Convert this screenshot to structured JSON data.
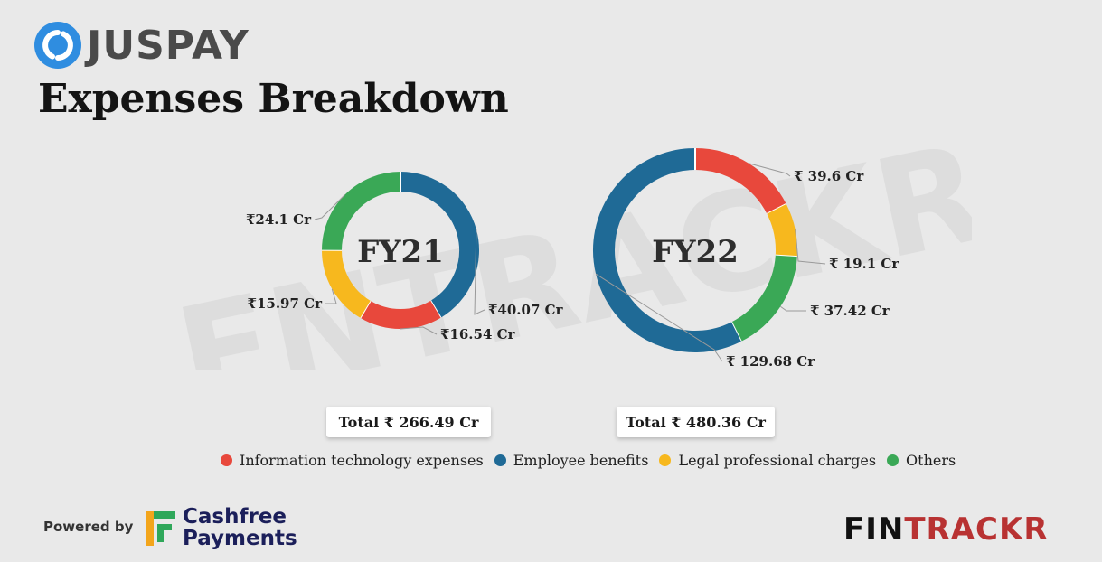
{
  "brand": {
    "name": "JUSPAY",
    "icon": "juspay-logo-icon",
    "icon_color": "#2f8de0"
  },
  "title": "Expenses Breakdown",
  "watermark": "ENTRACKR",
  "colors": {
    "it": "#e8483c",
    "employee": "#1f6a96",
    "legal": "#f7b81e",
    "others": "#3aa856"
  },
  "legend": [
    {
      "label": "Information technology expenses",
      "color": "#e8483c"
    },
    {
      "label": "Employee benefits",
      "color": "#1f6a96"
    },
    {
      "label": "Legal professional charges",
      "color": "#f7b81e"
    },
    {
      "label": "Others",
      "color": "#3aa856"
    }
  ],
  "chart_data": [
    {
      "type": "pie",
      "center_label": "FY21",
      "total_label": "Total ₹ 266.49 Cr",
      "slices": [
        {
          "category": "Employee benefits",
          "value": 40.07,
          "label": "₹40.07 Cr",
          "color": "#1f6a96"
        },
        {
          "category": "Information technology expenses",
          "value": 16.54,
          "label": "₹16.54 Cr",
          "color": "#e8483c"
        },
        {
          "category": "Legal professional charges",
          "value": 15.97,
          "label": "₹15.97 Cr",
          "color": "#f7b81e"
        },
        {
          "category": "Others",
          "value": 24.1,
          "label": "₹24.1 Cr",
          "color": "#3aa856"
        }
      ]
    },
    {
      "type": "pie",
      "center_label": "FY22",
      "total_label": "Total ₹ 480.36 Cr",
      "slices": [
        {
          "category": "Information technology expenses",
          "value": 39.6,
          "label": "₹ 39.6 Cr",
          "color": "#e8483c"
        },
        {
          "category": "Legal professional charges",
          "value": 19.1,
          "label": "₹ 19.1 Cr",
          "color": "#f7b81e"
        },
        {
          "category": "Others",
          "value": 37.42,
          "label": "₹ 37.42 Cr",
          "color": "#3aa856"
        },
        {
          "category": "Employee benefits",
          "value": 129.68,
          "label": "₹ 129.68 Cr",
          "color": "#1f6a96"
        }
      ]
    }
  ],
  "footer": {
    "powered_by": "Powered by",
    "sponsor_line1": "Cashfree",
    "sponsor_line2": "Payments",
    "sponsor_icon": "cashfree-logo-icon",
    "publisher_part1": "FIN",
    "publisher_part2": "TRACKR"
  }
}
